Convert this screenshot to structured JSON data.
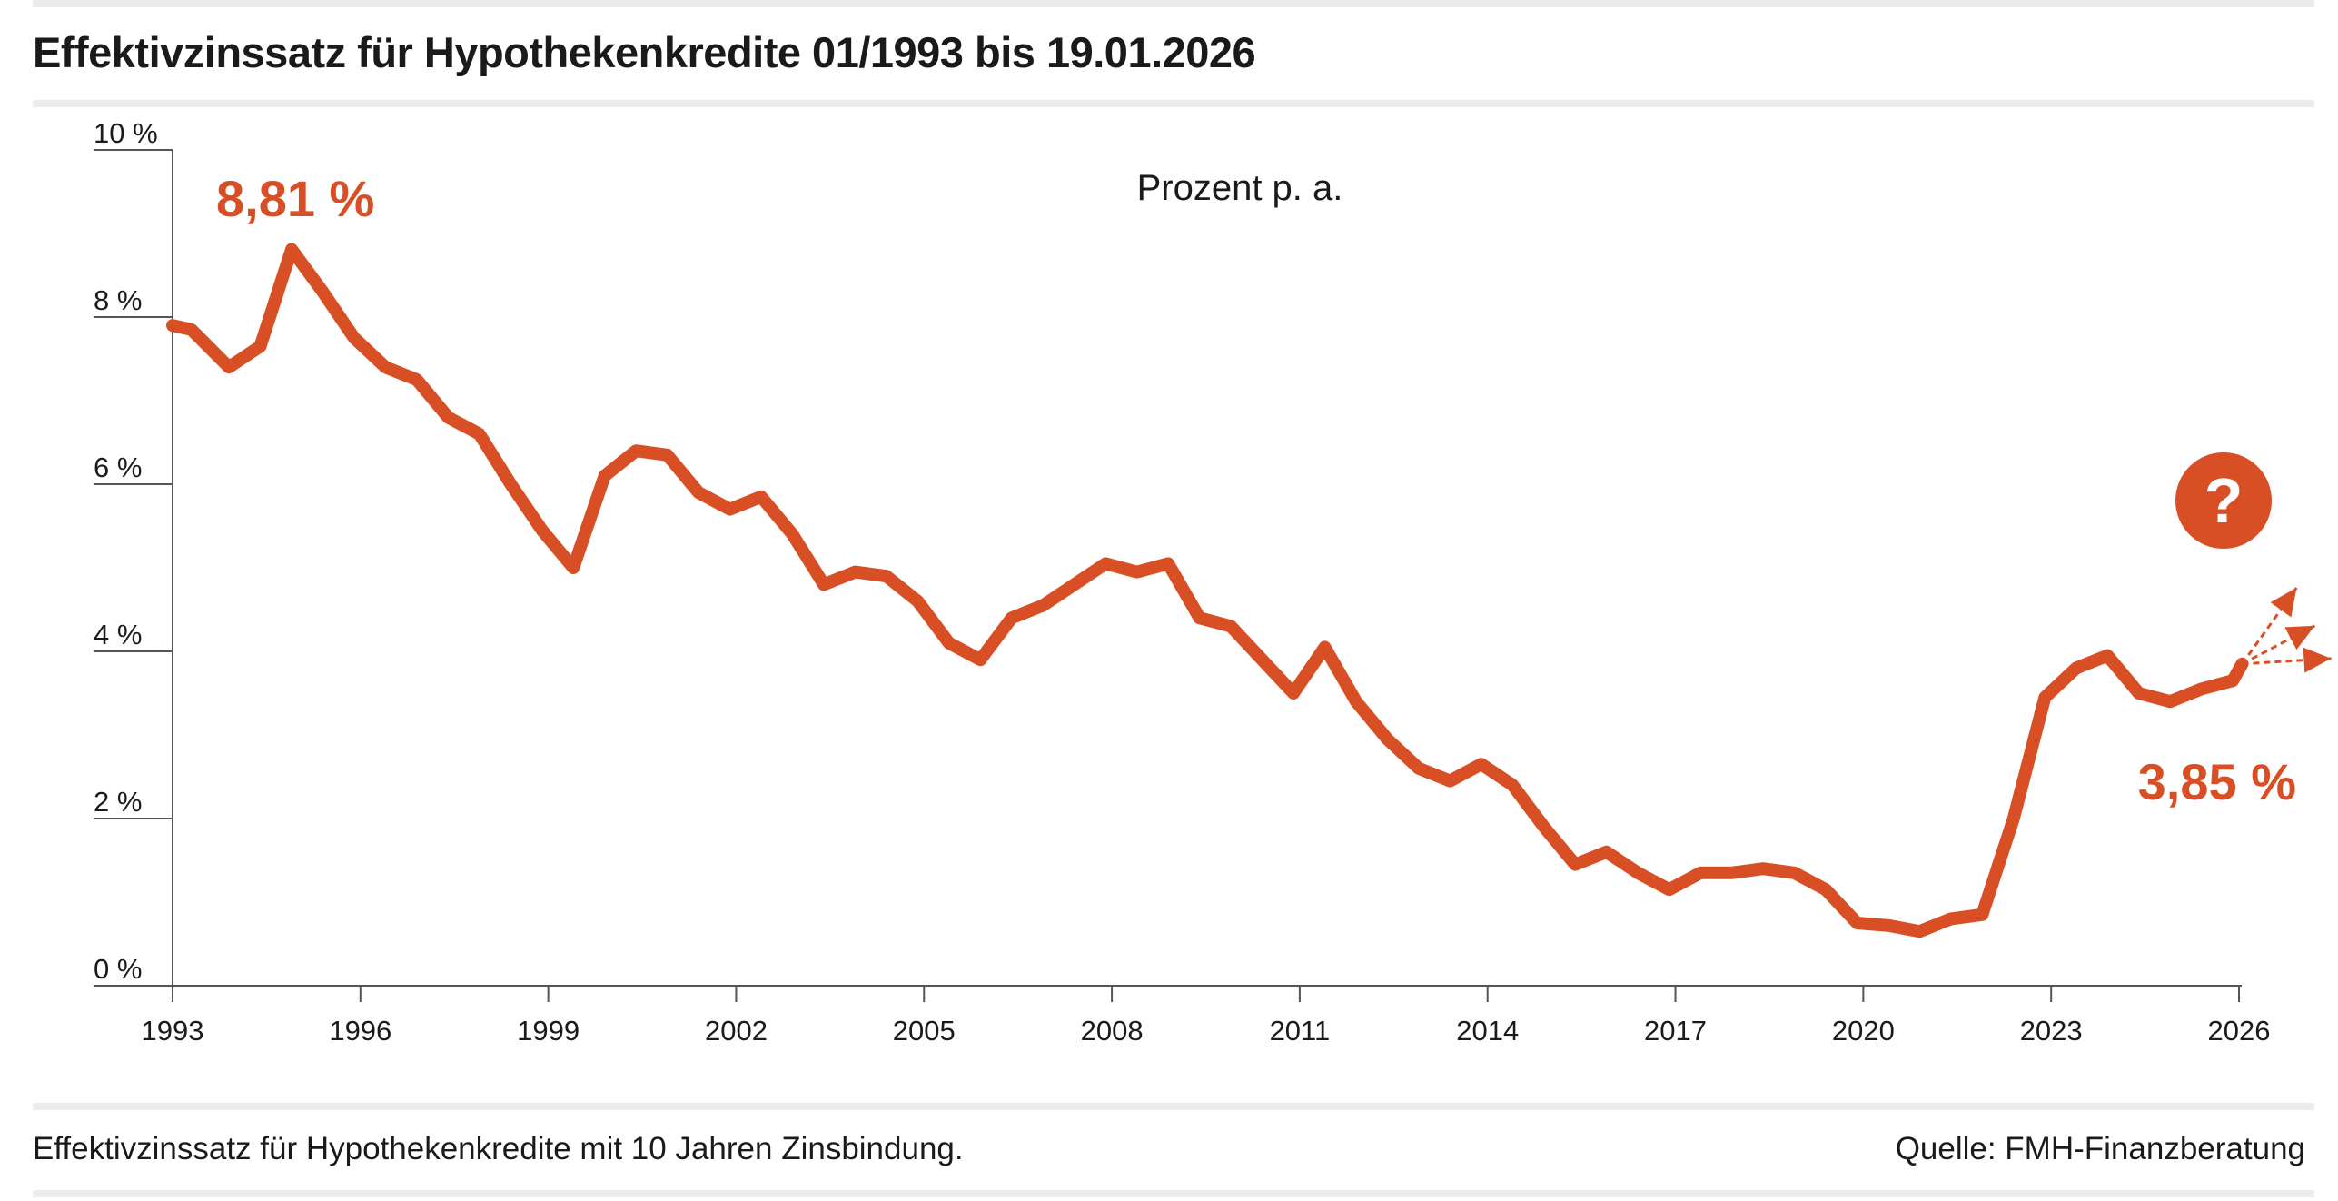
{
  "title": "Effektivzinssatz für Hypothekenkredite 01/1993 bis 19.01.2026",
  "footnote": "Effektivzinssatz für Hypothekenkredite mit 10 Jahren Zinsbindung.",
  "source": "Quelle: FMH-Finanzberatung",
  "colors": {
    "line": "#d94f25",
    "axis": "#555555",
    "rule": "#ececec",
    "text": "#1a1a1a"
  },
  "chart_data": {
    "type": "line",
    "unit_label": "Prozent p. a.",
    "xlim": [
      1993,
      2026.2
    ],
    "ylim": [
      0,
      10
    ],
    "yticks": [
      0,
      2,
      4,
      6,
      8,
      10
    ],
    "ytick_labels": [
      "0 %",
      "2 %",
      "4 %",
      "6 %",
      "8 %",
      "10 %"
    ],
    "xticks": [
      1993,
      1996,
      1999,
      2002,
      2005,
      2008,
      2011,
      2014,
      2017,
      2020,
      2023,
      2026
    ],
    "xtick_labels": [
      "1993",
      "1996",
      "1999",
      "2002",
      "2005",
      "2008",
      "2011",
      "2014",
      "2017",
      "2020",
      "2023",
      "2026"
    ],
    "series": [
      {
        "name": "Effektivzinssatz",
        "x": [
          1993.0,
          1993.3,
          1993.9,
          1994.4,
          1994.9,
          1995.4,
          1995.9,
          1996.4,
          1996.9,
          1997.4,
          1997.9,
          1998.4,
          1998.9,
          1999.4,
          1999.9,
          2000.4,
          2000.9,
          2001.4,
          2001.9,
          2002.4,
          2002.9,
          2003.4,
          2003.9,
          2004.4,
          2004.9,
          2005.4,
          2005.9,
          2006.4,
          2006.9,
          2007.4,
          2007.9,
          2008.4,
          2008.9,
          2009.4,
          2009.9,
          2010.4,
          2010.9,
          2011.4,
          2011.9,
          2012.4,
          2012.9,
          2013.4,
          2013.9,
          2014.4,
          2014.9,
          2015.4,
          2015.9,
          2016.4,
          2016.9,
          2017.4,
          2017.9,
          2018.4,
          2018.9,
          2019.4,
          2019.9,
          2020.4,
          2020.9,
          2021.4,
          2021.9,
          2022.4,
          2022.9,
          2023.4,
          2023.9,
          2024.4,
          2024.9,
          2025.4,
          2025.9,
          2026.05
        ],
        "y": [
          7.9,
          7.85,
          7.4,
          7.65,
          8.81,
          8.3,
          7.75,
          7.4,
          7.25,
          6.8,
          6.6,
          6.0,
          5.45,
          5.0,
          6.1,
          6.4,
          6.35,
          5.9,
          5.7,
          5.85,
          5.4,
          4.8,
          4.95,
          4.9,
          4.6,
          4.1,
          3.9,
          4.4,
          4.55,
          4.8,
          5.05,
          4.95,
          5.05,
          4.4,
          4.3,
          3.9,
          3.5,
          4.05,
          3.4,
          2.95,
          2.6,
          2.45,
          2.65,
          2.4,
          1.9,
          1.45,
          1.6,
          1.35,
          1.15,
          1.35,
          1.35,
          1.4,
          1.35,
          1.15,
          0.75,
          0.72,
          0.65,
          0.8,
          0.85,
          2.0,
          3.45,
          3.8,
          3.95,
          3.5,
          3.4,
          3.55,
          3.65,
          3.85
        ]
      }
    ],
    "annotations": [
      {
        "label": "8,81 %",
        "x": 1994.9,
        "y": 8.81
      },
      {
        "label": "3,85 %",
        "x": 2026.05,
        "y": 3.85
      },
      {
        "label": "?",
        "x": 2026.05,
        "y": 5.9
      }
    ]
  }
}
